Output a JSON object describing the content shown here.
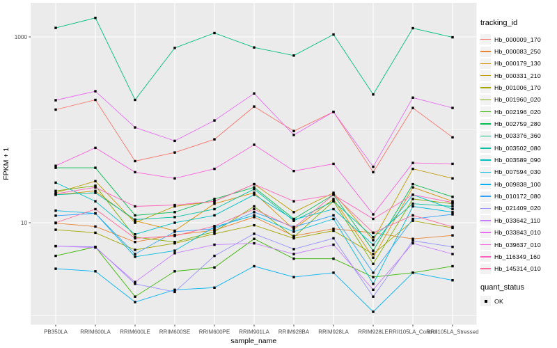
{
  "figure": {
    "background": "#FFFFFF",
    "panel_background": "#EBEBEB",
    "grid_color": "#FFFFFF",
    "marker_color": "#000000",
    "tick_text_color": "#4D4D4D",
    "axis_title_color": "#000000",
    "legend_key_background": "#F2F2F2"
  },
  "legend": {
    "tracking_title": "tracking_id",
    "quant_title": "quant_status",
    "quant_items": [
      {
        "label": "OK"
      }
    ]
  },
  "chart_data": {
    "type": "line",
    "title": "",
    "xlabel": "sample_name",
    "ylabel": "FPKM + 1",
    "y_scale": "log10",
    "ylim": [
      0.8,
      2300
    ],
    "grid": true,
    "legend_position": "right",
    "marker": "black-square",
    "y_ticks": [
      {
        "label": "1000",
        "value": 1000
      },
      {
        "label": "10",
        "value": 10
      }
    ],
    "y_minor_breaks": [
      100,
      1
    ],
    "categories": [
      "PB350LA",
      "RRIM600LA",
      "RRIM600LE",
      "RRIM600SE",
      "RRIM600PE",
      "RRIM901LA",
      "RRIM928BA",
      "RRIM928LA",
      "RRIM928LE",
      "RRII105LA_Control",
      "RRII105LA_Stressed"
    ],
    "series": [
      {
        "name": "Hb_000009_170",
        "color": "#F8766D",
        "values": [
          165,
          210,
          46,
          57,
          79,
          178,
          97,
          156,
          35,
          172,
          83
        ]
      },
      {
        "name": "Hb_000083_250",
        "color": "#EA8331",
        "values": [
          9.9,
          9.1,
          6.2,
          7.4,
          8.3,
          11.5,
          7.2,
          8.6,
          7.8,
          6.7,
          7.3
        ]
      },
      {
        "name": "Hb_000179_130",
        "color": "#D89000",
        "values": [
          20,
          22,
          10.5,
          8.2,
          16,
          21,
          8.5,
          18,
          4.2,
          24,
          17
        ]
      },
      {
        "name": "Hb_000331_210",
        "color": "#C09B00",
        "values": [
          21,
          28,
          10,
          15,
          17,
          26,
          13,
          21,
          6.5,
          38,
          30
        ]
      },
      {
        "name": "Hb_001006_170",
        "color": "#A3A500",
        "values": [
          8.4,
          7.8,
          5.1,
          6.0,
          7.6,
          9.4,
          6.8,
          8.2,
          4.6,
          10.5,
          8.8
        ]
      },
      {
        "name": "Hb_001960_020",
        "color": "#7CAE00",
        "values": [
          22,
          25,
          7.0,
          6.2,
          8.0,
          15,
          7.0,
          17,
          3.6,
          18,
          16
        ]
      },
      {
        "name": "Hb_002196_020",
        "color": "#39B600",
        "values": [
          4.4,
          5.5,
          1.6,
          3.0,
          3.3,
          6.7,
          4.1,
          4.1,
          2.6,
          2.9,
          3.4
        ]
      },
      {
        "name": "Hb_002759_280",
        "color": "#00BB4E",
        "values": [
          39,
          39,
          12,
          13,
          18,
          24,
          11,
          20,
          5.0,
          26,
          19
        ]
      },
      {
        "name": "Hb_003376_360",
        "color": "#00BF7D",
        "values": [
          1250,
          1600,
          210,
          760,
          1100,
          770,
          630,
          1060,
          240,
          1240,
          990
        ]
      },
      {
        "name": "Hb_003502_080",
        "color": "#00C1A3",
        "values": [
          20,
          21,
          10.8,
          11.5,
          14,
          23,
          10.5,
          17,
          7.0,
          16,
          15
        ]
      },
      {
        "name": "Hb_003589_090",
        "color": "#00BFC4",
        "values": [
          27,
          17,
          7.5,
          10,
          12,
          20,
          10.8,
          14,
          5.8,
          20,
          14
        ]
      },
      {
        "name": "Hb_007594_030",
        "color": "#00BAE0",
        "values": [
          13.5,
          12.6,
          4.3,
          5.0,
          9.0,
          12,
          8.0,
          11,
          2.2,
          15,
          13
        ]
      },
      {
        "name": "Hb_009838_100",
        "color": "#00B0F6",
        "values": [
          3.2,
          3.0,
          1.4,
          1.9,
          2.0,
          3.4,
          2.6,
          2.9,
          1.1,
          2.9,
          2.4
        ]
      },
      {
        "name": "Hb_010172_080",
        "color": "#35A2FF",
        "values": [
          11.9,
          12.6,
          4.6,
          8.0,
          8.6,
          13,
          9.0,
          12,
          2.9,
          11,
          12.3
        ]
      },
      {
        "name": "Hb_021409_020",
        "color": "#9590FF",
        "values": [
          5.6,
          5.5,
          2.2,
          1.8,
          4.4,
          7.6,
          5.2,
          6.8,
          1.6,
          6.4,
          5.5
        ]
      },
      {
        "name": "Hb_033642_110",
        "color": "#C77CFF",
        "values": [
          5.6,
          5.4,
          2.3,
          4.7,
          5.8,
          6.0,
          4.6,
          5.8,
          1.9,
          6.0,
          4.6
        ]
      },
      {
        "name": "Hb_033843_010",
        "color": "#E76BF3",
        "values": [
          208,
          260,
          106,
          76,
          126,
          246,
          88,
          156,
          40,
          222,
          172
        ]
      },
      {
        "name": "Hb_039637_010",
        "color": "#FA62DB",
        "values": [
          41,
          64,
          35,
          30,
          38,
          69,
          36,
          43,
          12.3,
          44,
          43
        ]
      },
      {
        "name": "Hb_116349_160",
        "color": "#FF62BC",
        "values": [
          20.5,
          24,
          15,
          15.5,
          17,
          26,
          17,
          20,
          11,
          20,
          16.5
        ]
      },
      {
        "name": "Hb_145314_010",
        "color": "#FF6A98",
        "values": [
          10,
          14,
          6.8,
          7.2,
          9.2,
          14,
          8.8,
          20,
          7.8,
          12,
          9.0
        ]
      }
    ]
  }
}
